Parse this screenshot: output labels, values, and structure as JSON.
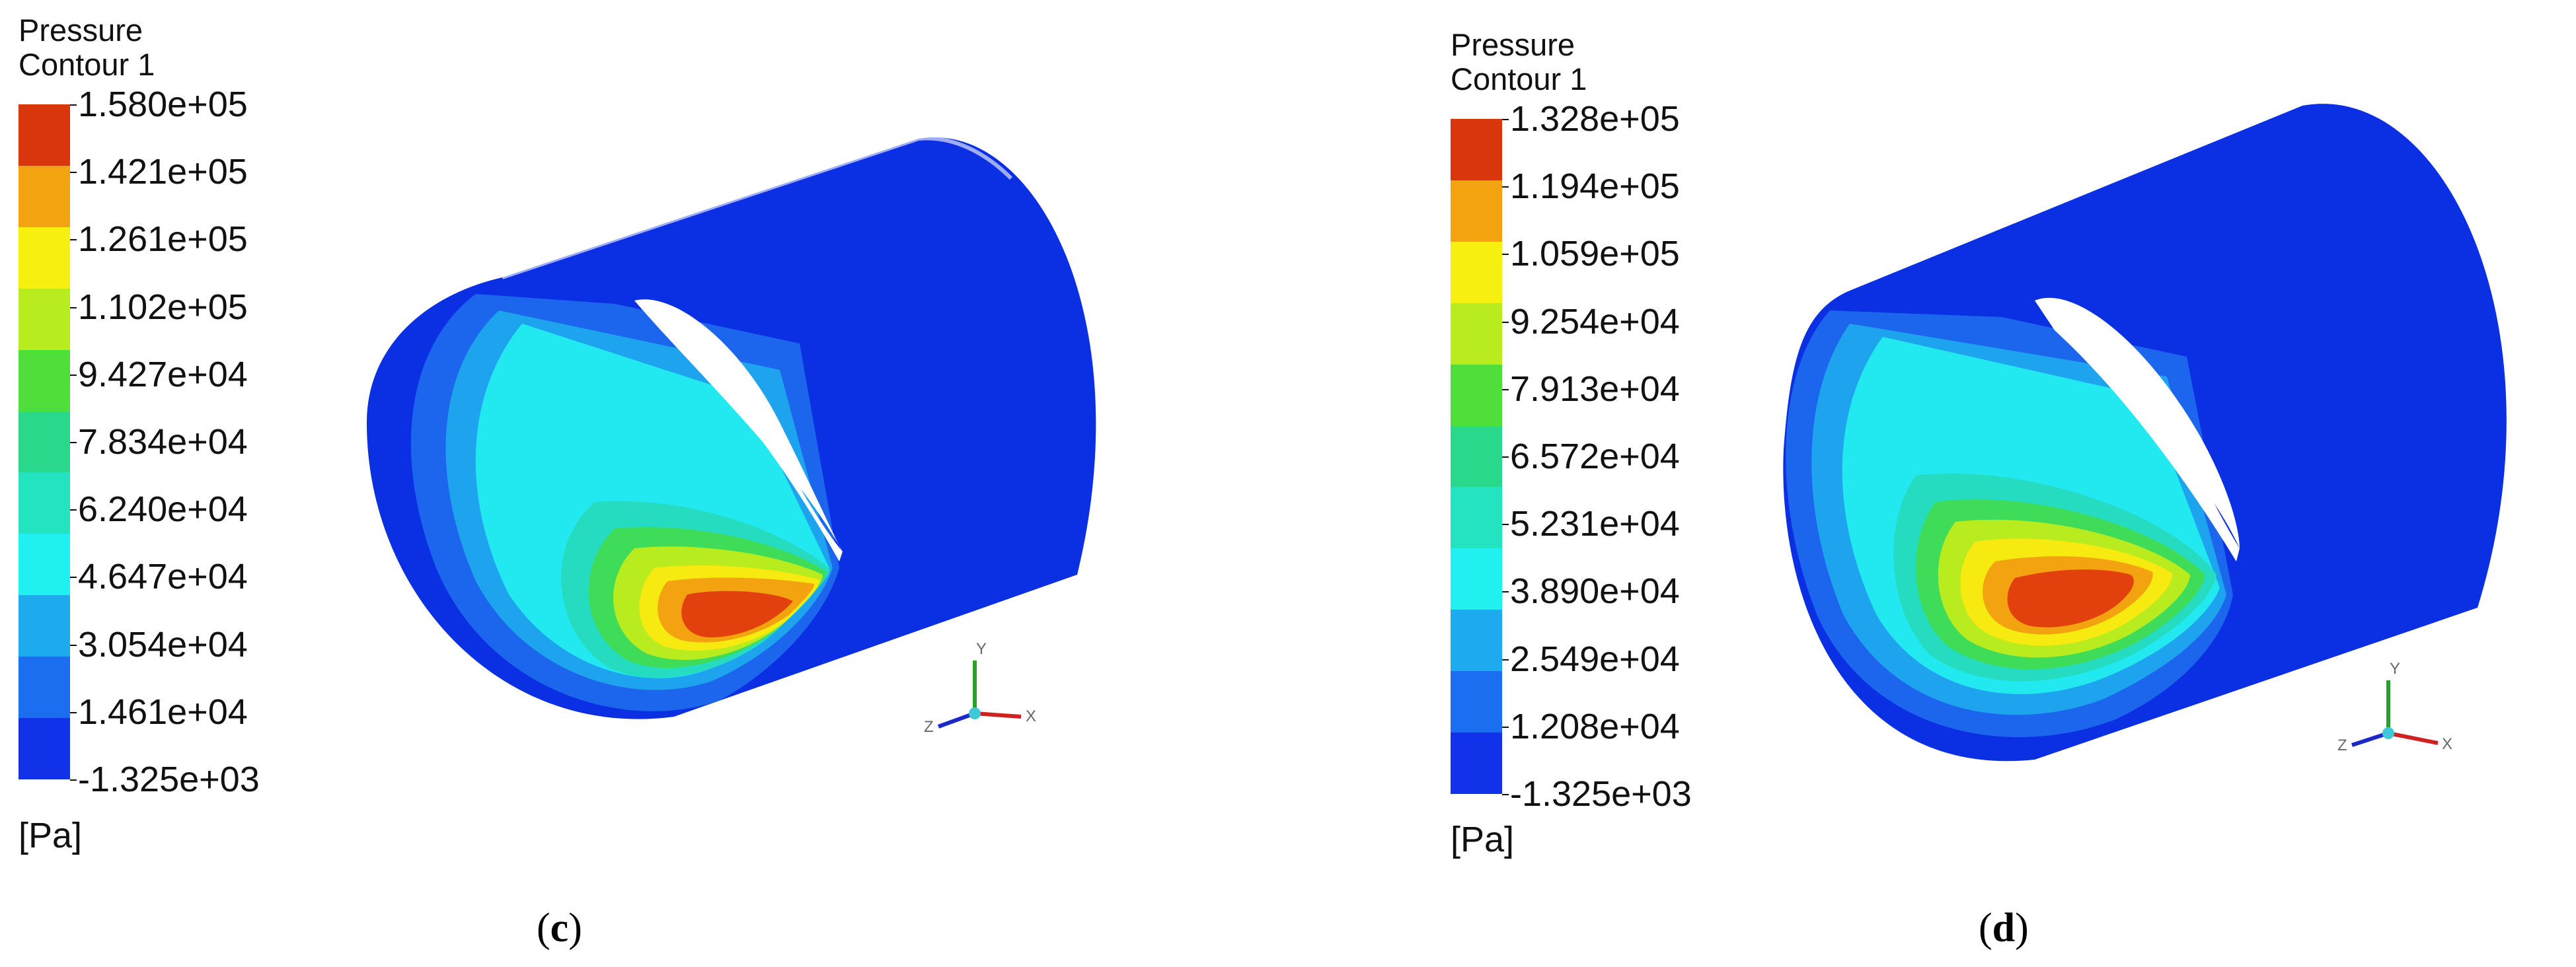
{
  "panels": [
    {
      "id": "c",
      "title_line1": "Pressure",
      "title_line2": "Contour 1",
      "unit": "[Pa]",
      "caption_letter": "c",
      "legend_ticks": [
        "1.580e+05",
        "1.421e+05",
        "1.261e+05",
        "1.102e+05",
        "9.427e+04",
        "7.834e+04",
        "6.240e+04",
        "4.647e+04",
        "3.054e+04",
        "1.461e+04",
        "-1.325e+03"
      ]
    },
    {
      "id": "d",
      "title_line1": "Pressure",
      "title_line2": "Contour 1",
      "unit": "[Pa]",
      "caption_letter": "d",
      "legend_ticks": [
        "1.328e+05",
        "1.194e+05",
        "1.059e+05",
        "9.254e+04",
        "7.913e+04",
        "6.572e+04",
        "5.231e+04",
        "3.890e+04",
        "2.549e+04",
        "1.208e+04",
        "-1.325e+03"
      ]
    }
  ],
  "colormap": [
    "#d9360e",
    "#f3a30f",
    "#f7ef10",
    "#b9ec1f",
    "#4fde3a",
    "#2ad88b",
    "#24e3c1",
    "#21f0f0",
    "#1eaaee",
    "#1b6ef0",
    "#1132e8"
  ],
  "axis_triad": {
    "x": "X",
    "y": "Y",
    "z": "Z"
  }
}
